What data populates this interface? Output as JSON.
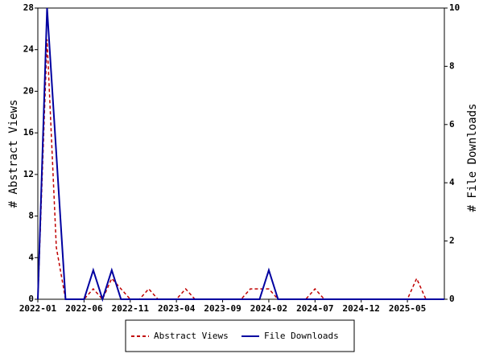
{
  "chart_data": {
    "type": "line",
    "y_label": "# Abstract Views",
    "y2_label": "# File Downloads",
    "categories": [
      "2022-01",
      null,
      null,
      null,
      null,
      "2022-06",
      null,
      null,
      null,
      null,
      "2022-11",
      null,
      null,
      null,
      null,
      "2023-04",
      null,
      null,
      null,
      null,
      "2023-09",
      null,
      null,
      null,
      null,
      "2024-02",
      null,
      null,
      null,
      null,
      "2024-07",
      null,
      null,
      null,
      null,
      "2024-12",
      null,
      null,
      null,
      null,
      "2025-05",
      null,
      null,
      null,
      null
    ],
    "series": [
      {
        "name": "Abstract Views",
        "color": "#c00000",
        "line_style": "dashed",
        "axis": "y",
        "values": [
          0,
          25,
          5,
          0,
          0,
          0,
          1,
          0,
          2,
          1,
          0,
          0,
          1,
          0,
          0,
          0,
          1,
          0,
          0,
          0,
          0,
          0,
          0,
          1,
          1,
          1,
          0,
          0,
          0,
          0,
          1,
          0,
          0,
          0,
          0,
          0,
          0,
          0,
          0,
          0,
          0,
          2,
          0,
          0,
          0
        ]
      },
      {
        "name": "File Downloads",
        "color": "#0000a0",
        "line_style": "solid",
        "axis": "y2",
        "values": [
          0,
          10,
          5,
          0,
          0,
          0,
          1,
          0,
          1,
          0,
          0,
          0,
          0,
          0,
          0,
          0,
          0,
          0,
          0,
          0,
          0,
          0,
          0,
          0,
          0,
          1,
          0,
          0,
          0,
          0,
          0,
          0,
          0,
          0,
          0,
          0,
          0,
          0,
          0,
          0,
          0,
          0,
          0,
          0,
          0
        ]
      }
    ],
    "ylim": [
      0,
      28
    ],
    "yticks": [
      0,
      4,
      8,
      12,
      16,
      20,
      24,
      28
    ],
    "y2lim": [
      0,
      10
    ],
    "y2ticks": [
      0,
      2,
      4,
      6,
      8,
      10
    ],
    "legend": "bottom"
  }
}
